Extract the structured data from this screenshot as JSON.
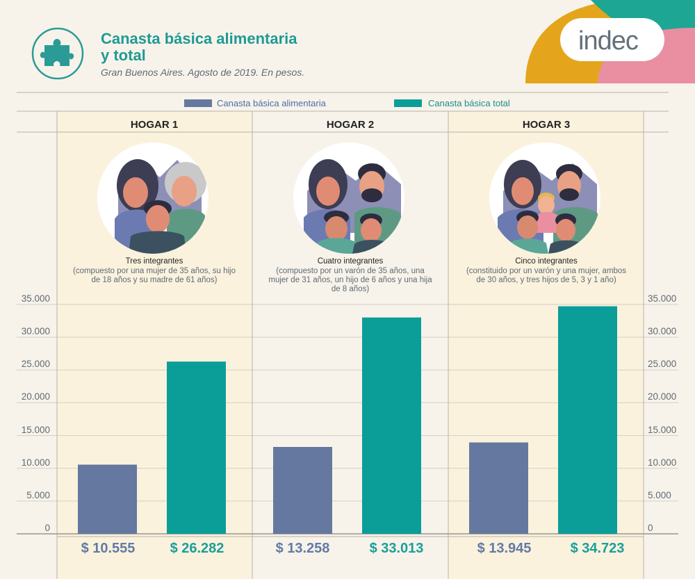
{
  "header": {
    "title": "Canasta básica alimentaria y total",
    "subtitle": "Gran Buenos Aires. Agosto de 2019. En pesos.",
    "logo_text": "indec"
  },
  "legend": {
    "alimentaria": "Canasta básica alimentaria",
    "total": "Canasta básica total"
  },
  "colors": {
    "alimentaria": "#65789f",
    "total": "#0b9e98",
    "panel": "#faf2dd",
    "accent_yellow": "#e4a51c",
    "accent_teal": "#1ea695",
    "accent_pink": "#e98fa1"
  },
  "icons": [
    "puzzle-icon",
    "family-illustration"
  ],
  "y_ticks": [
    "35.000",
    "30.000",
    "25.000",
    "20.000",
    "15.000",
    "10.000",
    "5.000",
    "0"
  ],
  "groups": [
    {
      "title": "HOGAR 1",
      "count": "Tres integrantes",
      "desc": [
        "(compuesto por una mujer de 35 años, su hijo",
        "de 18 años y su madre de 61 años)"
      ],
      "alim_label": "$ 10.555",
      "total_label": "$ 26.282"
    },
    {
      "title": "HOGAR 2",
      "count": "Cuatro integrantes",
      "desc": [
        "(compuesto por un varón de 35 años, una",
        "mujer de 31 años, un hijo de 6 años y una hija",
        "de 8 años)"
      ],
      "alim_label": "$ 13.258",
      "total_label": "$ 33.013"
    },
    {
      "title": "HOGAR 3",
      "count": "Cinco integrantes",
      "desc": [
        "(constituido por un varón y una mujer, ambos",
        "de 30 años, y tres hijos de 5, 3 y 1 año)"
      ],
      "alim_label": "$ 13.945",
      "total_label": "$ 34.723"
    }
  ],
  "chart_data": {
    "type": "bar",
    "categories": [
      "HOGAR 1",
      "HOGAR 2",
      "HOGAR 3"
    ],
    "series": [
      {
        "name": "Canasta básica alimentaria",
        "values": [
          10555,
          13258,
          13945
        ]
      },
      {
        "name": "Canasta básica total",
        "values": [
          26282,
          33013,
          34723
        ]
      }
    ],
    "ylim": [
      0,
      35000
    ],
    "grid": true,
    "legend": "top"
  }
}
